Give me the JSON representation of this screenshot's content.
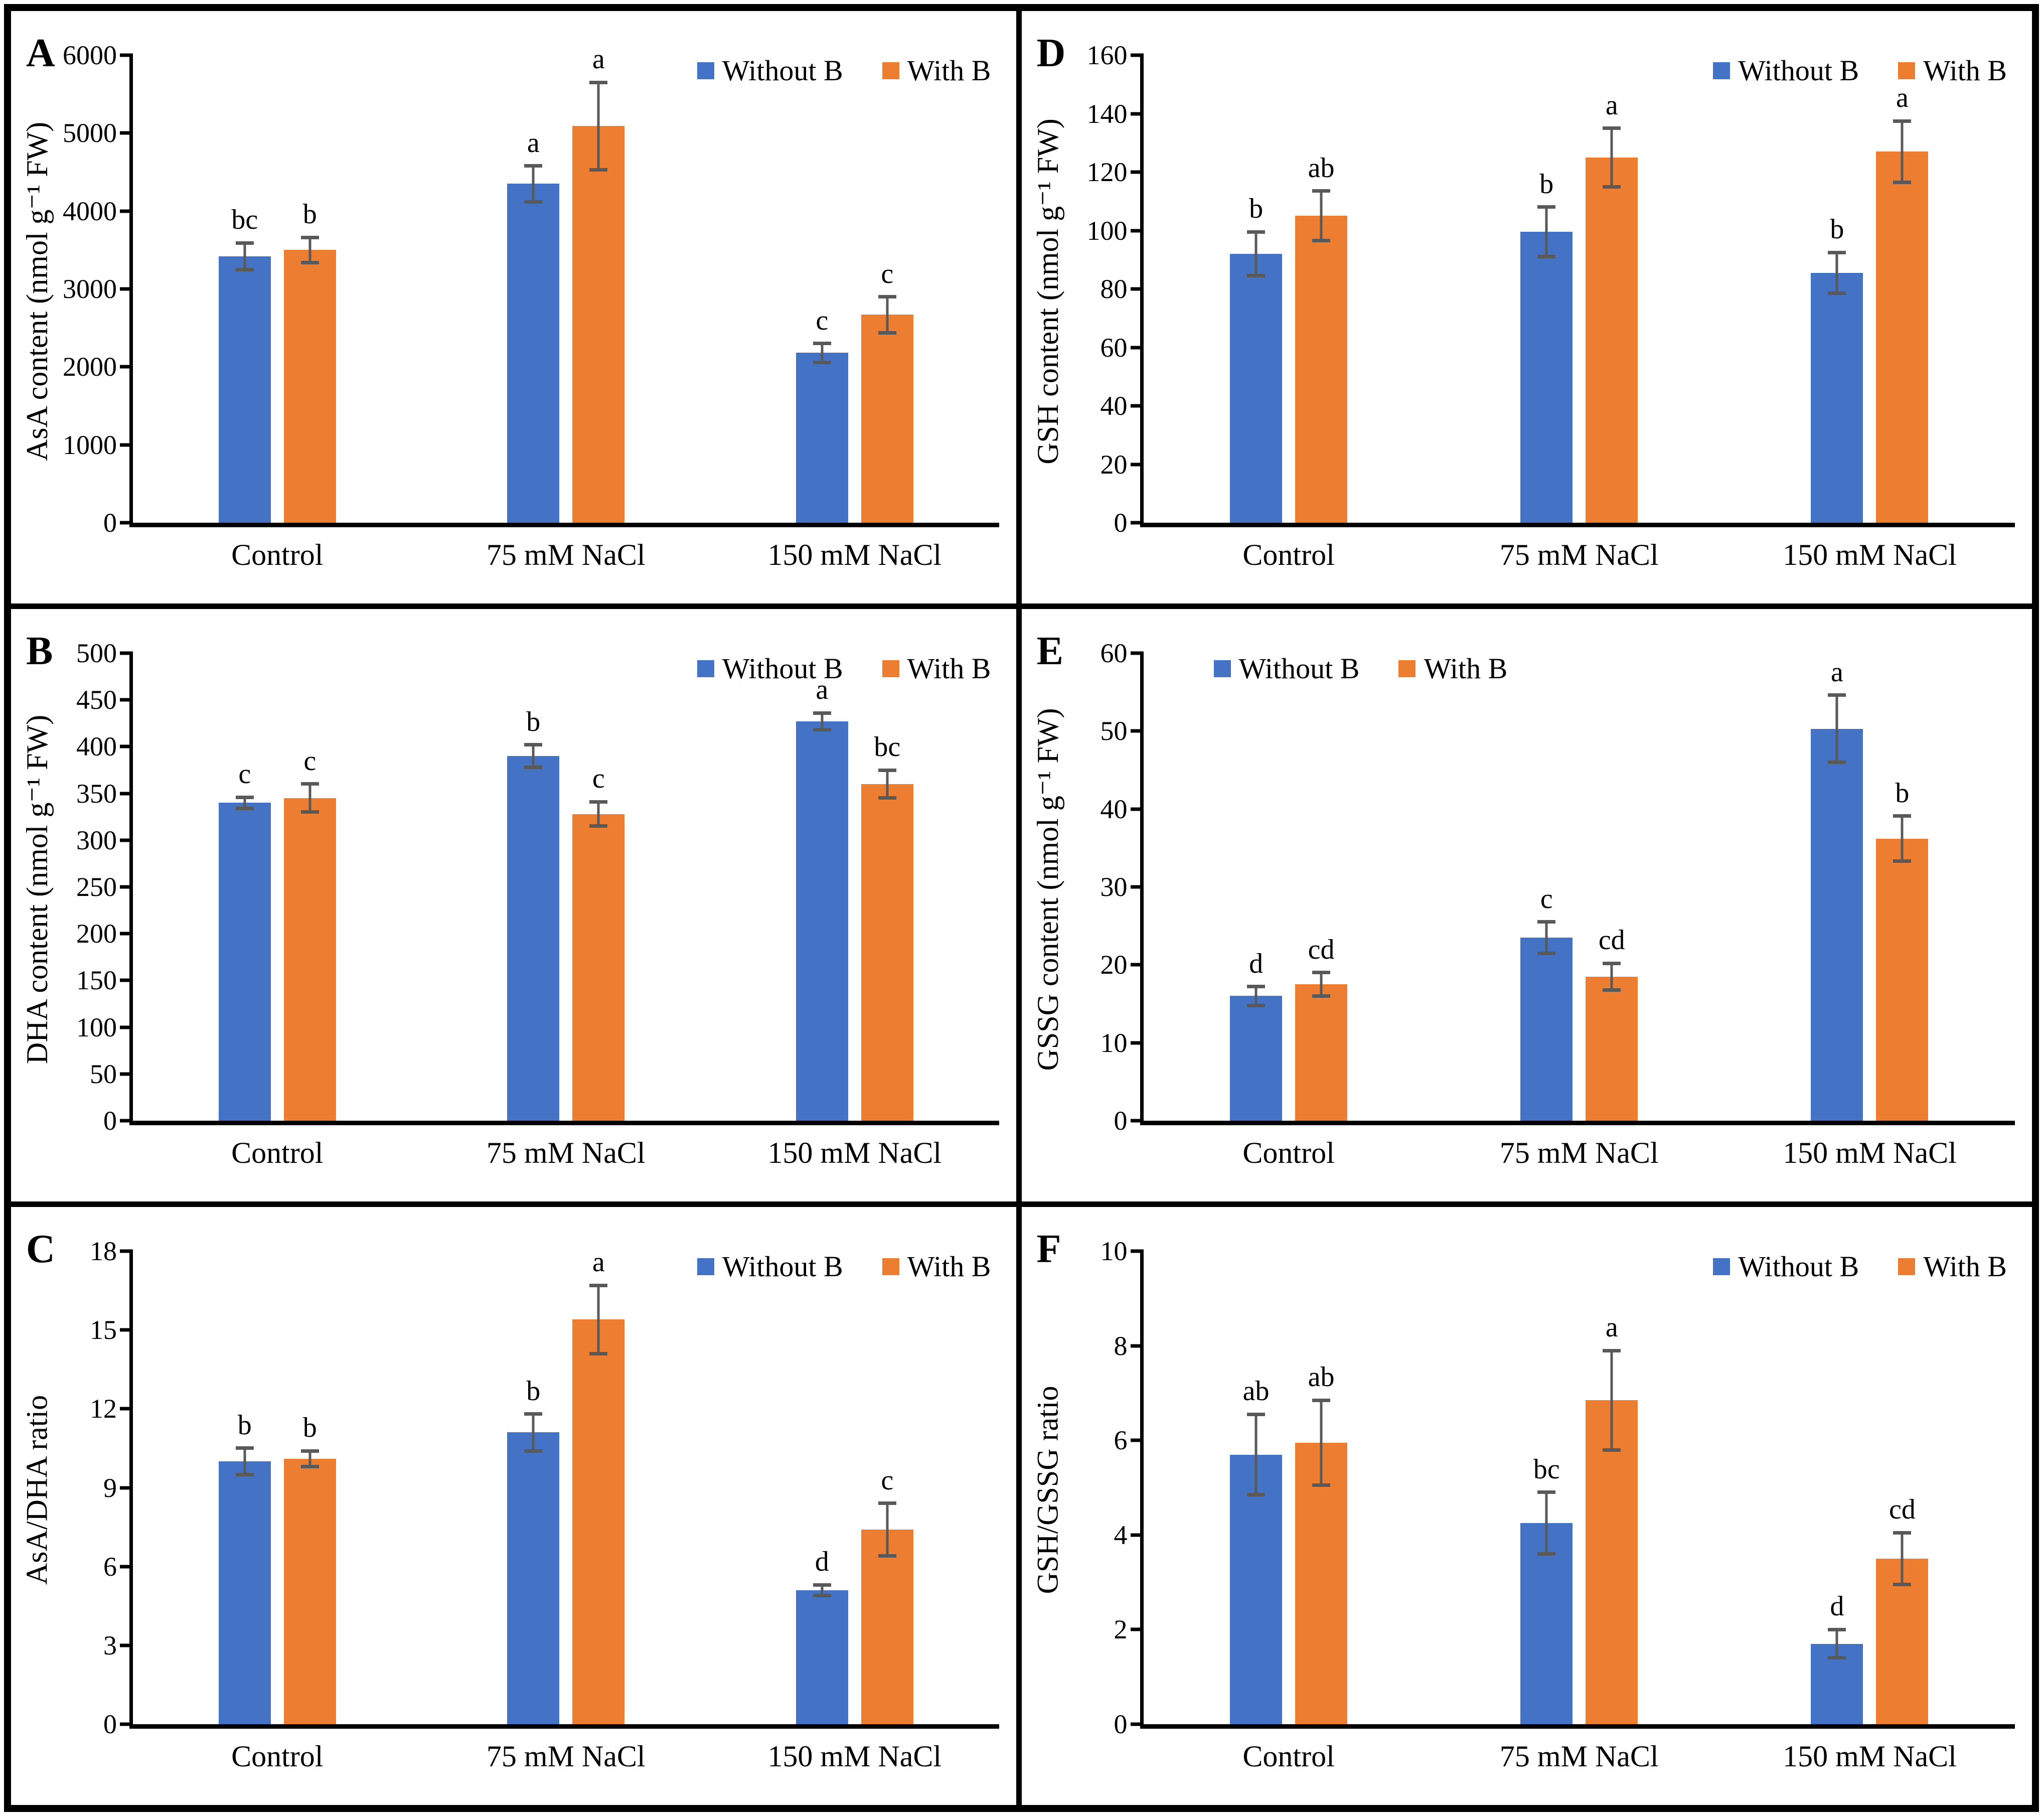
{
  "figure_title": "",
  "colors": {
    "without_b": "#4472C4",
    "with_b": "#ED7D31",
    "error_bar": "#595959",
    "axis": "#000000",
    "background": "#FFFFFF"
  },
  "legend_labels": [
    "Without B",
    "With B"
  ],
  "chart_data": [
    {
      "panel_label": "A",
      "type": "bar",
      "ylabel": "AsA content (nmol g⁻¹ FW)",
      "ylim": [
        0,
        6000
      ],
      "ytick_step": 1000,
      "grid": false,
      "legend_position": "top-right",
      "categories": [
        "Control",
        "75 mM NaCl",
        "150 mM NaCl"
      ],
      "series": [
        {
          "name": "Without B",
          "color_key": "without_b",
          "values": [
            3420,
            4350,
            2180
          ],
          "errors": [
            170,
            230,
            120
          ],
          "letters": [
            "bc",
            "a",
            "c"
          ]
        },
        {
          "name": "With B",
          "color_key": "with_b",
          "values": [
            3500,
            5090,
            2670
          ],
          "errors": [
            160,
            560,
            230
          ],
          "letters": [
            "b",
            "a",
            "c"
          ]
        }
      ]
    },
    {
      "panel_label": "D",
      "type": "bar",
      "ylabel": "GSH content (nmol g⁻¹ FW)",
      "ylim": [
        0,
        160
      ],
      "ytick_step": 20,
      "grid": false,
      "legend_position": "top-right",
      "categories": [
        "Control",
        "75 mM NaCl",
        "150 mM NaCl"
      ],
      "series": [
        {
          "name": "Without B",
          "color_key": "without_b",
          "values": [
            92,
            99.5,
            85.5
          ],
          "errors": [
            7.5,
            8.5,
            7
          ],
          "letters": [
            "b",
            "b",
            "b"
          ]
        },
        {
          "name": "With B",
          "color_key": "with_b",
          "values": [
            105,
            125,
            127
          ],
          "errors": [
            8.5,
            10,
            10.5
          ],
          "letters": [
            "ab",
            "a",
            "a"
          ]
        }
      ]
    },
    {
      "panel_label": "B",
      "type": "bar",
      "ylabel": "DHA content (nmol g⁻¹ FW)",
      "ylim": [
        0,
        500
      ],
      "ytick_step": 50,
      "grid": false,
      "legend_position": "top-right",
      "categories": [
        "Control",
        "75 mM NaCl",
        "150 mM NaCl"
      ],
      "series": [
        {
          "name": "Without B",
          "color_key": "without_b",
          "values": [
            340,
            390,
            427
          ],
          "errors": [
            6,
            12,
            9
          ],
          "letters": [
            "c",
            "b",
            "a"
          ]
        },
        {
          "name": "With B",
          "color_key": "with_b",
          "values": [
            345,
            328,
            360
          ],
          "errors": [
            15,
            13,
            15
          ],
          "letters": [
            "c",
            "c",
            "bc"
          ]
        }
      ]
    },
    {
      "panel_label": "E",
      "type": "bar",
      "ylabel": "GSSG content (nmol g⁻¹ FW)",
      "ylim": [
        0,
        60
      ],
      "ytick_step": 10,
      "grid": false,
      "legend_position": "top-left",
      "categories": [
        "Control",
        "75 mM NaCl",
        "150 mM NaCl"
      ],
      "series": [
        {
          "name": "Without B",
          "color_key": "without_b",
          "values": [
            16,
            23.5,
            50.3
          ],
          "errors": [
            1.2,
            2,
            4.3
          ],
          "letters": [
            "d",
            "c",
            "a"
          ]
        },
        {
          "name": "With B",
          "color_key": "with_b",
          "values": [
            17.5,
            18.5,
            36.2
          ],
          "errors": [
            1.5,
            1.7,
            2.9
          ],
          "letters": [
            "cd",
            "cd",
            "b"
          ]
        }
      ]
    },
    {
      "panel_label": "C",
      "type": "bar",
      "ylabel": "AsA/DHA ratio",
      "ylim": [
        0,
        18
      ],
      "ytick_step": 3,
      "grid": false,
      "legend_position": "top-right",
      "categories": [
        "Control",
        "75 mM NaCl",
        "150 mM NaCl"
      ],
      "series": [
        {
          "name": "Without B",
          "color_key": "without_b",
          "values": [
            10,
            11.1,
            5.1
          ],
          "errors": [
            0.5,
            0.7,
            0.2
          ],
          "letters": [
            "b",
            "b",
            "d"
          ]
        },
        {
          "name": "With B",
          "color_key": "with_b",
          "values": [
            10.1,
            15.4,
            7.4
          ],
          "errors": [
            0.3,
            1.3,
            1
          ],
          "letters": [
            "b",
            "a",
            "c"
          ]
        }
      ]
    },
    {
      "panel_label": "F",
      "type": "bar",
      "ylabel": "GSH/GSSG ratio",
      "ylim": [
        0,
        10
      ],
      "ytick_step": 2,
      "grid": false,
      "legend_position": "top-right",
      "categories": [
        "Control",
        "75 mM NaCl",
        "150 mM NaCl"
      ],
      "series": [
        {
          "name": "Without B",
          "color_key": "without_b",
          "values": [
            5.7,
            4.25,
            1.7
          ],
          "errors": [
            0.85,
            0.65,
            0.3
          ],
          "letters": [
            "ab",
            "bc",
            "d"
          ]
        },
        {
          "name": "With B",
          "color_key": "with_b",
          "values": [
            5.95,
            6.85,
            3.5
          ],
          "errors": [
            0.9,
            1.05,
            0.55
          ],
          "letters": [
            "ab",
            "a",
            "cd"
          ]
        }
      ]
    }
  ]
}
